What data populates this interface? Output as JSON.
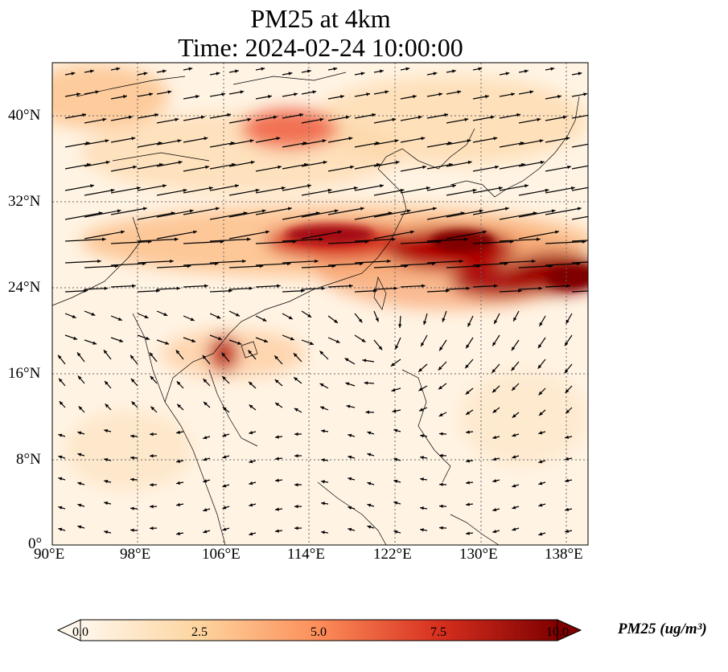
{
  "title_line1": "PM25 at 4km",
  "title_line2": "Time: 2024-02-24 10:00:00",
  "map": {
    "lon_range": [
      90,
      140
    ],
    "lat_range": [
      0,
      45
    ],
    "lon_ticks": [
      "90°E",
      "98°E",
      "106°E",
      "114°E",
      "122°E",
      "130°E",
      "138°E"
    ],
    "lat_ticks": [
      "0°",
      "8°N",
      "16°N",
      "24°N",
      "32°N",
      "40°N"
    ],
    "gridlines": true,
    "features": [
      "coastlines",
      "country borders",
      "wind vectors"
    ]
  },
  "colorbar": {
    "label": "PM25 (ug/m³)",
    "colormap": "OrRd",
    "range": [
      0.0,
      10.0
    ],
    "tick_labels": [
      "0.0",
      "2.5",
      "5.0",
      "7.5",
      "10.0"
    ],
    "extend": "both"
  }
}
